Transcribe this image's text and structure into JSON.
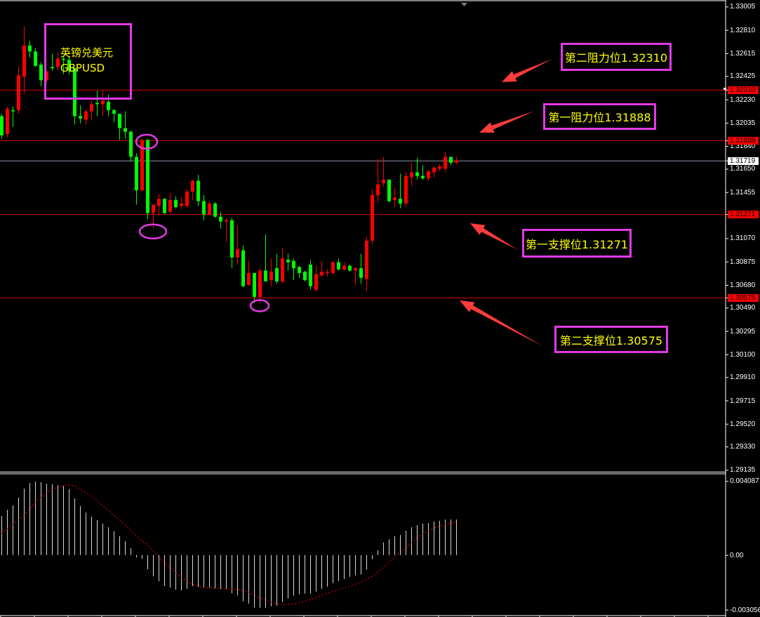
{
  "symbol_box": {
    "name_cn": "英镑兑美元",
    "symbol": "GBPUSD"
  },
  "annotations": [
    {
      "id": "resistance-2",
      "label": "第二阻力位1.32310",
      "price": 1.3231
    },
    {
      "id": "resistance-1",
      "label": "第一阻力位1.31888",
      "price": 1.31888
    },
    {
      "id": "support-1",
      "label": "第一支撑位1.31271",
      "price": 1.31271
    },
    {
      "id": "support-2",
      "label": "第二支撑位1.30575",
      "price": 1.30575
    }
  ],
  "level_tags": [
    {
      "value": "1.32310",
      "price": 1.3231
    },
    {
      "value": "1.31888",
      "price": 1.31888
    },
    {
      "value": "1.31271",
      "price": 1.31271
    },
    {
      "value": "1.30575",
      "price": 1.30575
    }
  ],
  "current_price": {
    "value": "1.31719",
    "price": 1.31719
  },
  "colors": {
    "up": "#ff0000",
    "down": "#00ff00",
    "level_line": "#d00000",
    "current_line": "#8a96a6",
    "annotation_border": "#e23ae6",
    "annotation_text": "#ffff00",
    "arrow": "#ff3b3b",
    "histogram": "#d8d8d8",
    "signal": "#ff0000",
    "tag_bg": "#ff0000",
    "background": "#000000"
  },
  "chart_data": [
    {
      "type": "candlestick",
      "title": "",
      "ylim": [
        1.2912,
        1.3306
      ],
      "grid": false,
      "yticks": [
        "1.33005",
        "1.32810",
        "1.32615",
        "1.32425",
        "1.32230",
        "1.32035",
        "1.31840",
        "1.31650",
        "1.31455",
        "1.31070",
        "1.30875",
        "1.30680",
        "1.30490",
        "1.30295",
        "1.30100",
        "1.29910",
        "1.29715",
        "1.29520",
        "1.29330",
        "1.29135"
      ],
      "ohlc_fields": [
        "open",
        "high",
        "low",
        "close"
      ],
      "candles": [
        [
          1.3209,
          1.3211,
          1.319,
          1.3193
        ],
        [
          1.3194,
          1.3217,
          1.3191,
          1.3215
        ],
        [
          1.3214,
          1.3217,
          1.32,
          1.3213
        ],
        [
          1.3214,
          1.325,
          1.3211,
          1.3243
        ],
        [
          1.3242,
          1.3284,
          1.3228,
          1.3268
        ],
        [
          1.3268,
          1.3272,
          1.3258,
          1.3263
        ],
        [
          1.3263,
          1.3266,
          1.325,
          1.3251
        ],
        [
          1.3252,
          1.3254,
          1.3234,
          1.3239
        ],
        [
          1.3239,
          1.3247,
          1.3238,
          1.3246
        ],
        [
          1.325,
          1.3261,
          1.3247,
          1.3249
        ],
        [
          1.325,
          1.3262,
          1.3247,
          1.3257
        ],
        [
          1.3257,
          1.3259,
          1.3244,
          1.3256
        ],
        [
          1.3256,
          1.3259,
          1.3244,
          1.3247
        ],
        [
          1.3249,
          1.3249,
          1.3202,
          1.3209
        ],
        [
          1.3209,
          1.3218,
          1.3203,
          1.3207
        ],
        [
          1.3206,
          1.3214,
          1.3202,
          1.3213
        ],
        [
          1.3213,
          1.3222,
          1.3206,
          1.3219
        ],
        [
          1.322,
          1.323,
          1.3209,
          1.3219
        ],
        [
          1.3219,
          1.3231,
          1.3209,
          1.3222
        ],
        [
          1.3221,
          1.3227,
          1.3209,
          1.3214
        ],
        [
          1.3214,
          1.3215,
          1.3204,
          1.3211
        ],
        [
          1.3211,
          1.3211,
          1.3189,
          1.3199
        ],
        [
          1.3199,
          1.3213,
          1.319,
          1.3196
        ],
        [
          1.3196,
          1.3197,
          1.3171,
          1.3175
        ],
        [
          1.3175,
          1.3178,
          1.3135,
          1.3147
        ],
        [
          1.3147,
          1.319,
          1.3146,
          1.3189
        ],
        [
          1.3189,
          1.319,
          1.3123,
          1.3128
        ],
        [
          1.3128,
          1.3135,
          1.3115,
          1.3135
        ],
        [
          1.3134,
          1.3144,
          1.3126,
          1.314
        ],
        [
          1.314,
          1.314,
          1.3127,
          1.3128
        ],
        [
          1.3129,
          1.3145,
          1.3128,
          1.3139
        ],
        [
          1.3139,
          1.3142,
          1.3132,
          1.3133
        ],
        [
          1.3134,
          1.3141,
          1.3131,
          1.3136
        ],
        [
          1.3134,
          1.3148,
          1.3132,
          1.3146
        ],
        [
          1.3146,
          1.3156,
          1.3139,
          1.3155
        ],
        [
          1.3155,
          1.316,
          1.3134,
          1.3138
        ],
        [
          1.3138,
          1.3143,
          1.3122,
          1.3127
        ],
        [
          1.3127,
          1.3138,
          1.3126,
          1.3136
        ],
        [
          1.3136,
          1.3137,
          1.3124,
          1.3125
        ],
        [
          1.3125,
          1.3129,
          1.3115,
          1.3121
        ],
        [
          1.3121,
          1.3124,
          1.3104,
          1.3122
        ],
        [
          1.3122,
          1.3124,
          1.3082,
          1.3091
        ],
        [
          1.3091,
          1.3118,
          1.3085,
          1.3098
        ],
        [
          1.3097,
          1.3101,
          1.3066,
          1.3067
        ],
        [
          1.3068,
          1.3088,
          1.3067,
          1.3078
        ],
        [
          1.3078,
          1.3078,
          1.3053,
          1.3058
        ],
        [
          1.3058,
          1.3082,
          1.3053,
          1.308
        ],
        [
          1.308,
          1.311,
          1.3071,
          1.3071
        ],
        [
          1.3072,
          1.309,
          1.3067,
          1.3079
        ],
        [
          1.3082,
          1.3094,
          1.3069,
          1.3071
        ],
        [
          1.3071,
          1.3099,
          1.3069,
          1.309
        ],
        [
          1.3089,
          1.3094,
          1.308,
          1.3087
        ],
        [
          1.3088,
          1.309,
          1.3072,
          1.3082
        ],
        [
          1.3083,
          1.3084,
          1.3074,
          1.3078
        ],
        [
          1.3079,
          1.308,
          1.3071,
          1.3072
        ],
        [
          1.3085,
          1.3089,
          1.3064,
          1.3067
        ],
        [
          1.3064,
          1.3084,
          1.3062,
          1.3077
        ],
        [
          1.3076,
          1.3088,
          1.3075,
          1.3079
        ],
        [
          1.3078,
          1.3081,
          1.3075,
          1.3079
        ],
        [
          1.3078,
          1.3088,
          1.3077,
          1.3087
        ],
        [
          1.3087,
          1.309,
          1.308,
          1.3081
        ],
        [
          1.3081,
          1.3087,
          1.308,
          1.3084
        ],
        [
          1.3084,
          1.3085,
          1.3079,
          1.308
        ],
        [
          1.308,
          1.3083,
          1.3068,
          1.3082
        ],
        [
          1.3082,
          1.3094,
          1.3069,
          1.3074
        ],
        [
          1.3073,
          1.3108,
          1.3063,
          1.3105
        ],
        [
          1.3105,
          1.3148,
          1.3102,
          1.3143
        ],
        [
          1.3143,
          1.3173,
          1.3137,
          1.3152
        ],
        [
          1.3153,
          1.3175,
          1.315,
          1.3156
        ],
        [
          1.3156,
          1.3156,
          1.3137,
          1.3138
        ],
        [
          1.3139,
          1.3149,
          1.3133,
          1.3141
        ],
        [
          1.314,
          1.3161,
          1.3132,
          1.3136
        ],
        [
          1.3136,
          1.3162,
          1.3133,
          1.3159
        ],
        [
          1.3158,
          1.317,
          1.3151,
          1.3162
        ],
        [
          1.3162,
          1.3174,
          1.3156,
          1.3159
        ],
        [
          1.3159,
          1.3168,
          1.3156,
          1.3157
        ],
        [
          1.3157,
          1.3164,
          1.3155,
          1.3163
        ],
        [
          1.3162,
          1.3167,
          1.3158,
          1.3166
        ],
        [
          1.3165,
          1.3169,
          1.3163,
          1.3167
        ],
        [
          1.3165,
          1.3179,
          1.3162,
          1.3175
        ],
        [
          1.3175,
          1.3175,
          1.3168,
          1.317
        ],
        [
          1.317,
          1.3175,
          1.3169,
          1.3172
        ]
      ],
      "horizontal_levels": [
        1.3231,
        1.31888,
        1.31271,
        1.30575
      ],
      "highlighted_candles": [
        26,
        27,
        46
      ]
    },
    {
      "type": "bar",
      "title": "",
      "ylim": [
        -0.00322,
        0.00432
      ],
      "yticks": [
        "0.004087",
        "0.00",
        "-0.003056"
      ],
      "histogram": [
        0.00208,
        0.00241,
        0.00264,
        0.00305,
        0.00353,
        0.00383,
        0.00391,
        0.00387,
        0.00379,
        0.00376,
        0.00372,
        0.00368,
        0.0035,
        0.00301,
        0.0026,
        0.00226,
        0.00204,
        0.00185,
        0.00167,
        0.00148,
        0.00126,
        0.001,
        0.00073,
        0.00036,
        -0.00012,
        -0.0002,
        -0.00076,
        -0.00113,
        -0.00139,
        -0.00165,
        -0.00173,
        -0.00184,
        -0.00188,
        -0.0018,
        -0.00165,
        -0.00169,
        -0.00173,
        -0.00173,
        -0.00177,
        -0.0018,
        -0.0018,
        -0.00203,
        -0.00214,
        -0.00246,
        -0.00258,
        -0.0028,
        -0.0028,
        -0.0028,
        -0.00272,
        -0.00269,
        -0.0025,
        -0.00231,
        -0.00216,
        -0.00209,
        -0.00205,
        -0.00205,
        -0.00194,
        -0.00179,
        -0.00168,
        -0.00149,
        -0.00138,
        -0.00127,
        -0.00116,
        -0.00108,
        -0.00104,
        -0.00078,
        -0.00022,
        0.00025,
        0.00066,
        0.00085,
        0.001,
        0.00107,
        0.00129,
        0.00148,
        0.00159,
        0.00167,
        0.0017,
        0.00178,
        0.00182,
        0.00189,
        0.00189,
        0.00189
      ],
      "signal": [
        0.00114,
        0.00138,
        0.00162,
        0.00186,
        0.0021,
        0.00245,
        0.0028,
        0.00303,
        0.00327,
        0.0035,
        0.0036,
        0.00369,
        0.00373,
        0.00368,
        0.0035,
        0.00333,
        0.00312,
        0.00289,
        0.00264,
        0.00238,
        0.00213,
        0.00188,
        0.0016,
        0.00134,
        0.00103,
        0.00076,
        0.00056,
        0.00023,
        -0.0001,
        -0.00038,
        -0.00067,
        -0.00093,
        -0.0012,
        -0.00136,
        -0.00155,
        -0.00165,
        -0.00171,
        -0.00174,
        -0.00177,
        -0.00179,
        -0.0018,
        -0.00181,
        -0.00182,
        -0.00188,
        -0.00196,
        -0.00212,
        -0.00227,
        -0.00239,
        -0.0025,
        -0.00257,
        -0.00264,
        -0.00263,
        -0.00261,
        -0.00254,
        -0.00247,
        -0.00236,
        -0.00225,
        -0.00214,
        -0.00203,
        -0.00194,
        -0.00184,
        -0.00175,
        -0.00165,
        -0.00155,
        -0.00144,
        -0.00129,
        -0.00114,
        -0.0009,
        -0.00067,
        -0.00039,
        -0.00011,
        0.00012,
        0.00035,
        0.00065,
        0.00094,
        0.00111,
        0.00128,
        0.00142,
        0.00155,
        0.00162,
        0.0017,
        0.00177
      ]
    }
  ]
}
